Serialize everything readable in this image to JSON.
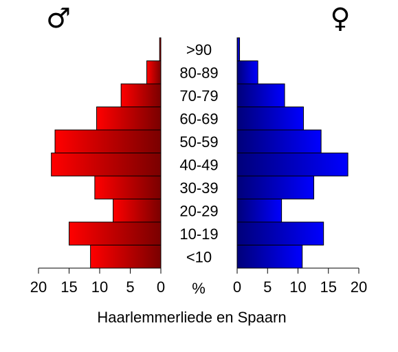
{
  "chart_data": {
    "type": "bar",
    "orientation": "horizontal",
    "title": "",
    "xlabel": "Haarlemmerliede en Spaarn",
    "unit_label": "%",
    "male_symbol": "♂",
    "female_symbol": "♀",
    "categories": [
      "<10",
      "10-19",
      "20-29",
      "30-39",
      "40-49",
      "50-59",
      "60-69",
      "70-79",
      "80-89",
      ">90"
    ],
    "series": [
      {
        "name": "♂",
        "values": [
          11.5,
          15.0,
          7.8,
          10.8,
          17.9,
          17.3,
          10.5,
          6.5,
          2.3,
          0.2
        ]
      },
      {
        "name": "♀",
        "values": [
          10.7,
          14.2,
          7.3,
          12.6,
          18.2,
          13.8,
          10.9,
          7.8,
          3.4,
          0.4
        ]
      }
    ],
    "xlim": [
      0,
      20
    ],
    "xticks": [
      0,
      5,
      10,
      15,
      20
    ],
    "colors": {
      "male_light": "#ff0000",
      "male_dark": "#7a0000",
      "female_light": "#0000ff",
      "female_dark": "#00007a"
    }
  }
}
